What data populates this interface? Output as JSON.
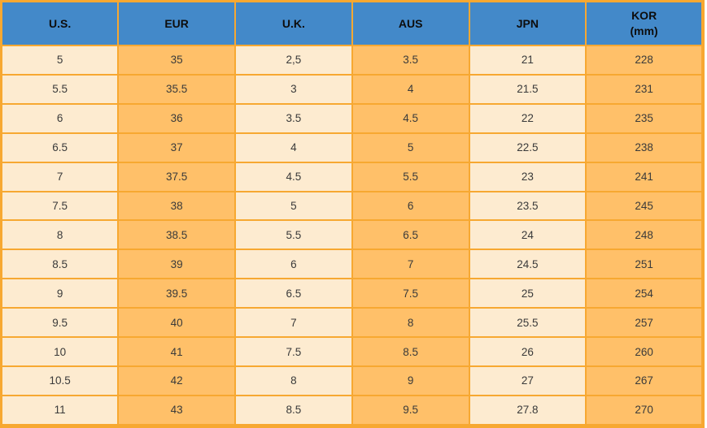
{
  "colors": {
    "page-bg": "#FFFFFF",
    "header-bg": "#4389C9",
    "header-text": "#0D0D0D",
    "cell-light": "#FDEBD0",
    "cell-orange": "#FFC069",
    "grid": "#F7A831",
    "body-text": "#3A3A3A"
  },
  "chart_data": {
    "type": "table",
    "title": "",
    "columns": [
      {
        "key": "us",
        "label": "U.S.",
        "sublabel": ""
      },
      {
        "key": "eur",
        "label": "EUR",
        "sublabel": ""
      },
      {
        "key": "uk",
        "label": "U.K.",
        "sublabel": ""
      },
      {
        "key": "aus",
        "label": "AUS",
        "sublabel": ""
      },
      {
        "key": "jpn",
        "label": "JPN",
        "sublabel": ""
      },
      {
        "key": "kor",
        "label": "KOR",
        "sublabel": "(mm)"
      }
    ],
    "rows": [
      [
        "5",
        "35",
        "2,5",
        "3.5",
        "21",
        "228"
      ],
      [
        "5.5",
        "35.5",
        "3",
        "4",
        "21.5",
        "231"
      ],
      [
        "6",
        "36",
        "3.5",
        "4.5",
        "22",
        "235"
      ],
      [
        "6.5",
        "37",
        "4",
        "5",
        "22.5",
        "238"
      ],
      [
        "7",
        "37.5",
        "4.5",
        "5.5",
        "23",
        "241"
      ],
      [
        "7.5",
        "38",
        "5",
        "6",
        "23.5",
        "245"
      ],
      [
        "8",
        "38.5",
        "5.5",
        "6.5",
        "24",
        "248"
      ],
      [
        "8.5",
        "39",
        "6",
        "7",
        "24.5",
        "251"
      ],
      [
        "9",
        "39.5",
        "6.5",
        "7.5",
        "25",
        "254"
      ],
      [
        "9.5",
        "40",
        "7",
        "8",
        "25.5",
        "257"
      ],
      [
        "10",
        "41",
        "7.5",
        "8.5",
        "26",
        "260"
      ],
      [
        "10.5",
        "42",
        "8",
        "9",
        "27",
        "267"
      ],
      [
        "11",
        "43",
        "8.5",
        "9.5",
        "27.8",
        "270"
      ]
    ]
  }
}
